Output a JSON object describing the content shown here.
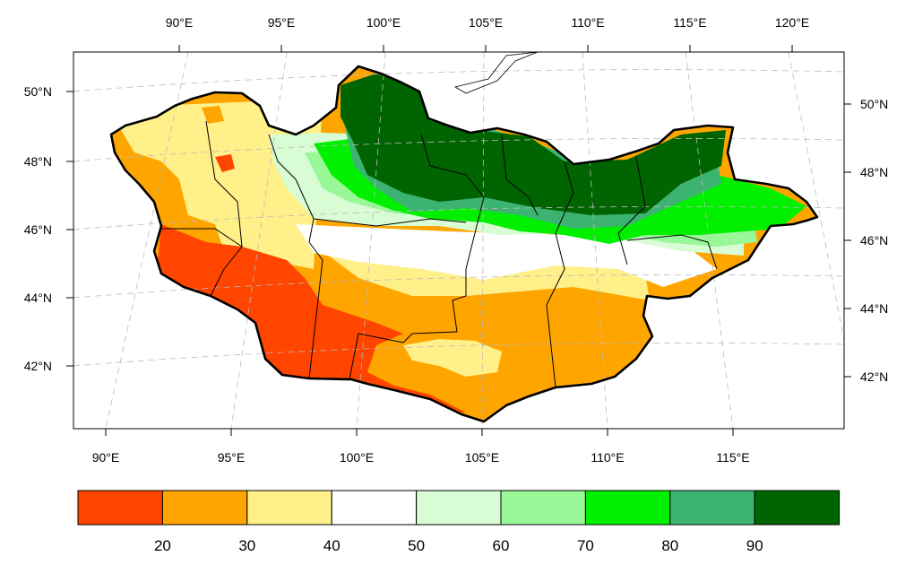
{
  "map": {
    "lon_labels_top": [
      "90°E",
      "95°E",
      "100°E",
      "105°E",
      "110°E",
      "115°E",
      "120°E"
    ],
    "lon_labels_bottom": [
      "90°E",
      "95°E",
      "100°E",
      "105°E",
      "110°E",
      "115°E"
    ],
    "lat_labels_left": [
      "50°N",
      "48°N",
      "46°N",
      "44°N",
      "42°N"
    ],
    "lat_labels_right": [
      "50°N",
      "48°N",
      "46°N",
      "44°N",
      "42°N"
    ]
  },
  "colorbar": {
    "labels": [
      "20",
      "30",
      "40",
      "50",
      "60",
      "70",
      "80",
      "90"
    ],
    "colors": [
      "#ff4500",
      "#ffa500",
      "#fff08a",
      "#ffffff",
      "#d8fcd4",
      "#98f898",
      "#00f000",
      "#3cb371",
      "#006400"
    ]
  }
}
